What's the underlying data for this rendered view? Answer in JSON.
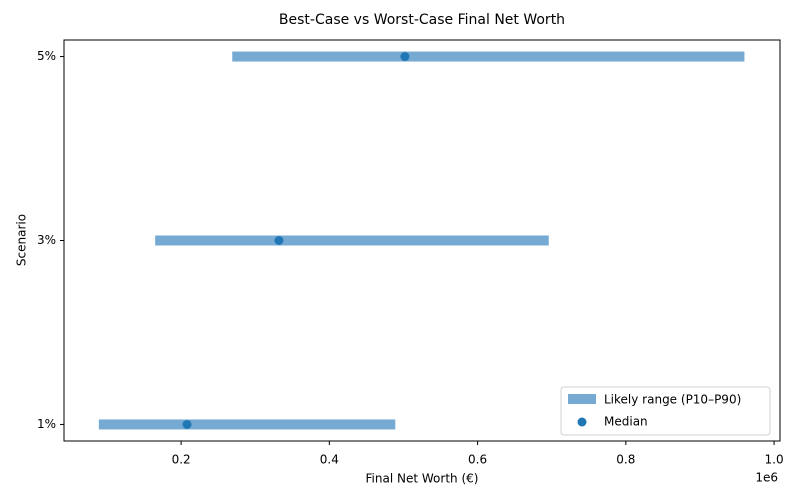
{
  "chart_data": {
    "type": "range",
    "title": "Best-Case vs Worst-Case Final Net Worth",
    "x_label": "Final Net Worth (€)",
    "y_label": "Scenario",
    "x_offset_label": "1e6",
    "categories": [
      "1%",
      "3%",
      "5%"
    ],
    "series": [
      {
        "name": "Likely range (P10–P90)",
        "color": "#76aad3",
        "low": [
          0.089,
          0.165,
          0.269
        ],
        "high": [
          0.489,
          0.696,
          0.96
        ]
      },
      {
        "name": "Median",
        "color": "#1f77b4",
        "values": [
          0.208,
          0.332,
          0.502
        ]
      }
    ],
    "xlim": [
      0.042,
      1.008
    ],
    "xticks": [
      0.2,
      0.4,
      0.6,
      0.8,
      {
        "value": 1.0,
        "label": "1.0"
      }
    ],
    "legend": "lower right"
  }
}
